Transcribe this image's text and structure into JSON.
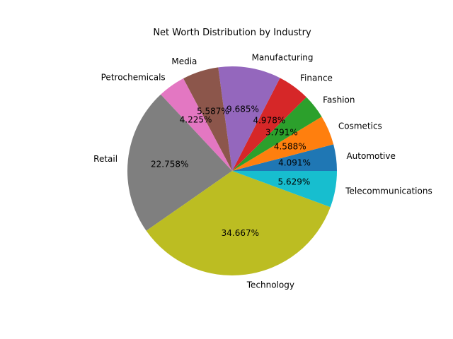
{
  "chart_data": {
    "type": "pie",
    "title": "Net Worth Distribution by Industry",
    "start_angle_deg": 0,
    "direction": "counterclockwise",
    "slices": [
      {
        "label": "Automotive",
        "value": 4.091,
        "pct_label": "4.091%",
        "color": "#1f77b4"
      },
      {
        "label": "Cosmetics",
        "value": 4.588,
        "pct_label": "4.588%",
        "color": "#ff7f0e"
      },
      {
        "label": "Fashion",
        "value": 3.791,
        "pct_label": "3.791%",
        "color": "#2ca02c"
      },
      {
        "label": "Finance",
        "value": 4.978,
        "pct_label": "4.978%",
        "color": "#d62728"
      },
      {
        "label": "Manufacturing",
        "value": 9.685,
        "pct_label": "9.685%",
        "color": "#9467bd"
      },
      {
        "label": "Media",
        "value": 5.587,
        "pct_label": "5.587%",
        "color": "#8c564b"
      },
      {
        "label": "Petrochemicals",
        "value": 4.225,
        "pct_label": "4.225%",
        "color": "#e377c2"
      },
      {
        "label": "Retail",
        "value": 22.758,
        "pct_label": "22.758%",
        "color": "#7f7f7f"
      },
      {
        "label": "Technology",
        "value": 34.667,
        "pct_label": "34.667%",
        "color": "#bcbd22"
      },
      {
        "label": "Telecommunications",
        "value": 5.629,
        "pct_label": "5.629%",
        "color": "#17becf"
      }
    ]
  }
}
